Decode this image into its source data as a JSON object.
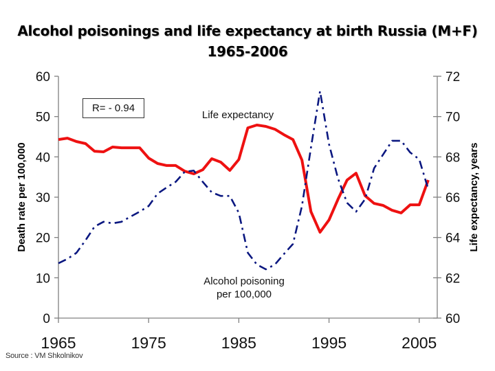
{
  "title": {
    "line1": "Alcohol poisonings and life expectancy at birth Russia (M+F)",
    "line2": "1965-2006"
  },
  "source": "Source : VM Shkolnikov",
  "chart_data": {
    "type": "line",
    "title": "Alcohol poisonings and life expectancy at birth Russia (M+F) 1965-2006",
    "xlabel": "",
    "x_ticks": [
      "1965",
      "1975",
      "1985",
      "1995",
      "2005"
    ],
    "xlim": [
      1965,
      2007
    ],
    "y_left": {
      "label": "Death rate per 100,000",
      "ylim": [
        0,
        60
      ],
      "ticks": [
        "0",
        "10",
        "20",
        "30",
        "40",
        "50",
        "60"
      ]
    },
    "y_right": {
      "label": "Life expectancy, years",
      "ylim": [
        60,
        72
      ],
      "ticks": [
        "60",
        "62",
        "64",
        "66",
        "68",
        "70",
        "72"
      ]
    },
    "grid": false,
    "annotation": "R= - 0.94",
    "x": [
      1965,
      1966,
      1967,
      1968,
      1969,
      1970,
      1971,
      1972,
      1973,
      1974,
      1975,
      1976,
      1977,
      1978,
      1979,
      1980,
      1981,
      1982,
      1983,
      1984,
      1985,
      1986,
      1987,
      1988,
      1989,
      1990,
      1991,
      1992,
      1993,
      1994,
      1995,
      1996,
      1997,
      1998,
      1999,
      2000,
      2001,
      2002,
      2003,
      2004,
      2005,
      2006
    ],
    "series": [
      {
        "name": "Life expectancy",
        "axis": "right",
        "color": "#ee1111",
        "style": "solid",
        "label": "Life expectancy",
        "values": [
          68.86,
          68.93,
          68.76,
          68.66,
          68.28,
          68.25,
          68.49,
          68.45,
          68.45,
          68.45,
          67.94,
          67.67,
          67.57,
          67.57,
          67.29,
          67.16,
          67.36,
          67.91,
          67.74,
          67.33,
          67.87,
          69.44,
          69.58,
          69.51,
          69.37,
          69.1,
          68.86,
          67.84,
          65.28,
          64.26,
          64.87,
          65.9,
          66.85,
          67.19,
          66.07,
          65.69,
          65.59,
          65.35,
          65.22,
          65.62,
          65.62,
          66.85
        ]
      },
      {
        "name": "Alcohol poisoning per 100,000",
        "axis": "left",
        "color": "#0a1780",
        "style": "dash-dot",
        "label_line1": "Alcohol poisoning",
        "label_line2": "per 100,000",
        "values": [
          13.6,
          14.7,
          16.2,
          19.3,
          22.7,
          23.9,
          23.5,
          23.9,
          25.2,
          26.4,
          27.8,
          30.9,
          32.4,
          33.8,
          36.3,
          36.6,
          33.8,
          31.2,
          30.3,
          30.3,
          26.1,
          16.2,
          13.3,
          12.1,
          13.3,
          15.9,
          18.4,
          27.8,
          42.3,
          56.3,
          43.1,
          34.6,
          28.6,
          26.4,
          29.5,
          37.2,
          40.6,
          44.0,
          44.0,
          41.1,
          39.4,
          32.0
        ]
      }
    ]
  }
}
